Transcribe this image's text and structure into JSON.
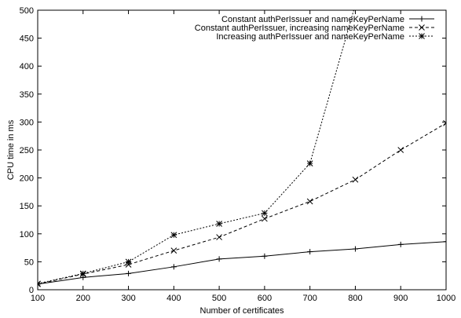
{
  "chart_data": {
    "type": "line",
    "title": "",
    "xlabel": "Number of certificates",
    "ylabel": "CPU time in ms",
    "xlim": [
      100,
      1000
    ],
    "ylim": [
      0,
      500
    ],
    "xticks": [
      100,
      200,
      300,
      400,
      500,
      600,
      700,
      800,
      900,
      1000
    ],
    "yticks": [
      0,
      50,
      100,
      150,
      200,
      250,
      300,
      350,
      400,
      450,
      500
    ],
    "grid": false,
    "legend_position": "top-right",
    "series": [
      {
        "name": "Constant authPerIssuer and nameKeyPerName",
        "marker": "plus",
        "dash": "solid",
        "x": [
          100,
          200,
          300,
          400,
          500,
          600,
          700,
          800,
          900,
          1000
        ],
        "y": [
          10,
          22,
          29,
          41,
          55,
          60,
          68,
          73,
          81,
          86
        ]
      },
      {
        "name": "Constant authPerIssuer, increasing nameKeyPerName",
        "marker": "cross",
        "dash": "dashed",
        "x": [
          100,
          200,
          300,
          400,
          500,
          600,
          700,
          800,
          900,
          1000
        ],
        "y": [
          10,
          28,
          45,
          70,
          94,
          127,
          158,
          197,
          250,
          298
        ]
      },
      {
        "name": "Increasing authPerIssuer and nameKeyPerName",
        "marker": "star",
        "dash": "dotted",
        "x": [
          100,
          200,
          300,
          400,
          500,
          600,
          700,
          800
        ],
        "y": [
          11,
          29,
          50,
          98,
          118,
          137,
          226,
          510
        ]
      }
    ]
  }
}
